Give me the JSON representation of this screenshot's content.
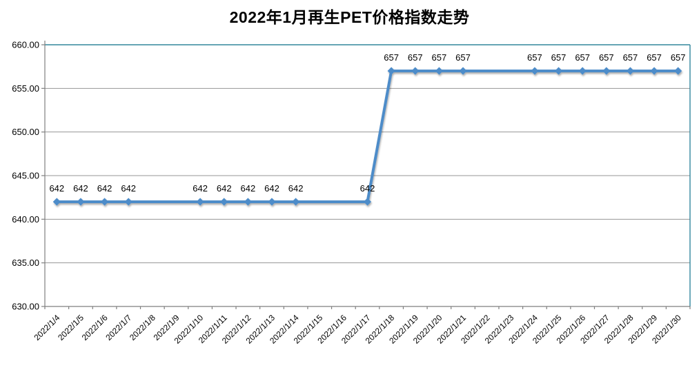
{
  "style": {
    "line_color": "#4e8cc9",
    "grid_color": "#969696",
    "axis_color": "#7f7f7f",
    "plot_border_color": "#31859c",
    "text_color": "#000000",
    "background": "#ffffff"
  },
  "chart_data": {
    "type": "line",
    "title": "2022年1月再生PET价格指数走势",
    "x": [
      "2022/1/4",
      "2022/1/5",
      "2022/1/6",
      "2022/1/7",
      "2022/1/8",
      "2022/1/9",
      "2022/1/10",
      "2022/1/11",
      "2022/1/12",
      "2022/1/13",
      "2022/1/14",
      "2022/1/15",
      "2022/1/16",
      "2022/1/17",
      "2022/1/18",
      "2022/1/19",
      "2022/1/20",
      "2022/1/21",
      "2022/1/22",
      "2022/1/23",
      "2022/1/24",
      "2022/1/25",
      "2022/1/26",
      "2022/1/27",
      "2022/1/28",
      "2022/1/29",
      "2022/1/30"
    ],
    "values": [
      642,
      642,
      642,
      642,
      null,
      null,
      642,
      642,
      642,
      642,
      642,
      null,
      null,
      642,
      657,
      657,
      657,
      657,
      null,
      null,
      657,
      657,
      657,
      657,
      657,
      657,
      657
    ],
    "ylim": [
      630,
      660
    ],
    "y_tick_step": 5,
    "y_tick_labels": [
      "630.00",
      "635.00",
      "640.00",
      "645.00",
      "650.00",
      "655.00",
      "660.00"
    ],
    "x_tick_rotation": -45,
    "xlabel": "",
    "ylabel": "",
    "legend": "none",
    "grid": "horizontal",
    "marker": "diamond",
    "line_color": "#4e8cc9",
    "data_labels": "shown above each plotted point",
    "connect_gaps": true
  }
}
